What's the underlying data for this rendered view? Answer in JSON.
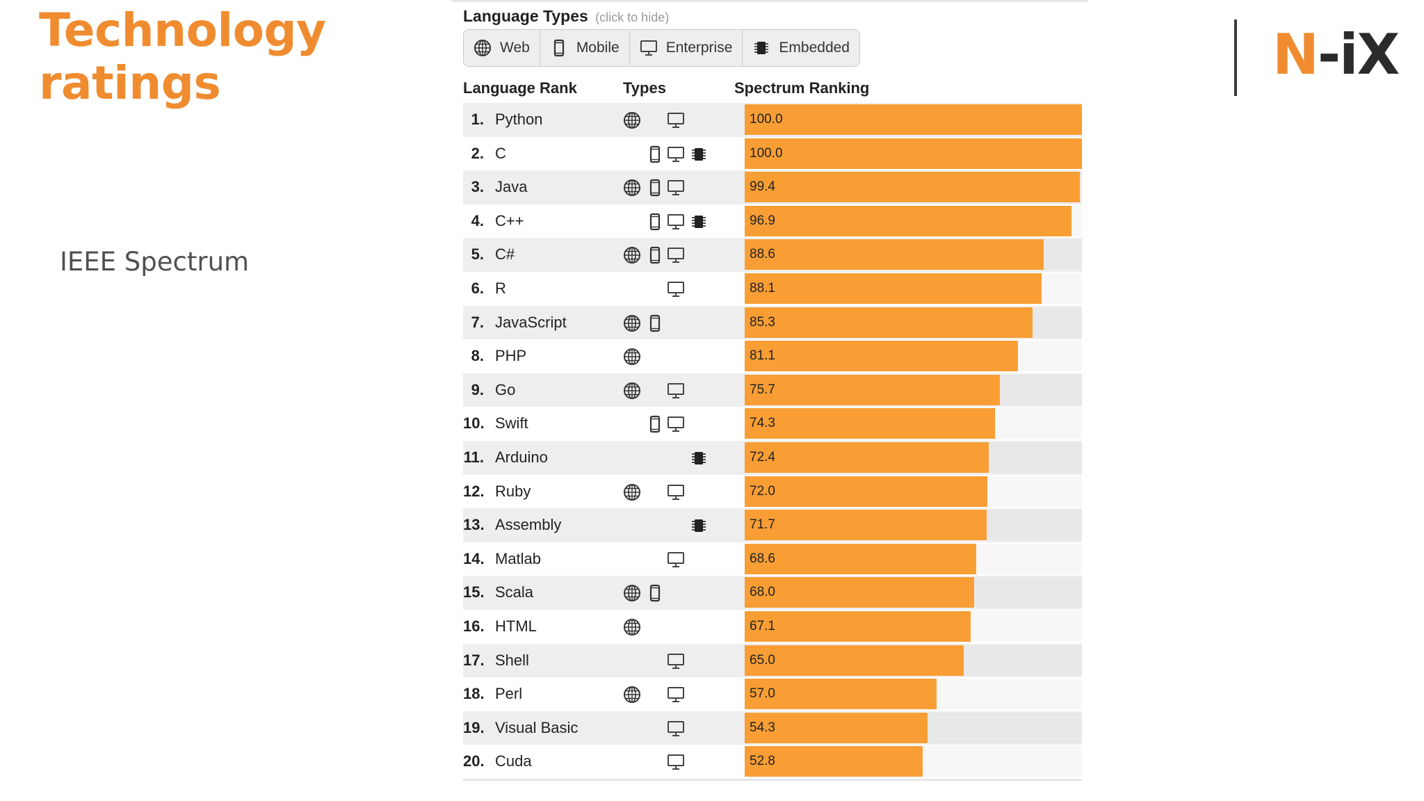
{
  "slide": {
    "title_line1": "Technology",
    "title_line2": "ratings",
    "subtitle": "IEEE Spectrum",
    "logo_n": "N",
    "logo_rest": "-iX"
  },
  "widget": {
    "language_types_label": "Language Types",
    "language_types_hint": "(click to hide)",
    "filters": [
      {
        "label": "Web",
        "icon": "globe-icon"
      },
      {
        "label": "Mobile",
        "icon": "mobile-icon"
      },
      {
        "label": "Enterprise",
        "icon": "monitor-icon"
      },
      {
        "label": "Embedded",
        "icon": "chip-icon"
      }
    ],
    "col_rank": "Language Rank",
    "col_types": "Types",
    "col_spectrum": "Spectrum Ranking"
  },
  "colors": {
    "bar": "#f89e35",
    "title": "#f08c30"
  },
  "chart_data": {
    "type": "bar",
    "orientation": "horizontal",
    "xlim": [
      0,
      100
    ],
    "categories": [
      "Python",
      "C",
      "Java",
      "C++",
      "C#",
      "R",
      "JavaScript",
      "PHP",
      "Go",
      "Swift",
      "Arduino",
      "Ruby",
      "Assembly",
      "Matlab",
      "Scala",
      "HTML",
      "Shell",
      "Perl",
      "Visual Basic",
      "Cuda"
    ],
    "values": [
      100.0,
      100.0,
      99.4,
      96.9,
      88.6,
      88.1,
      85.3,
      81.1,
      75.7,
      74.3,
      72.4,
      72.0,
      71.7,
      68.6,
      68.0,
      67.1,
      65.0,
      57.0,
      54.3,
      52.8
    ],
    "labels": [
      "100.0",
      "100.0",
      "99.4",
      "96.9",
      "88.6",
      "88.1",
      "85.3",
      "81.1",
      "75.7",
      "74.3",
      "72.4",
      "72.0",
      "71.7",
      "68.6",
      "68.0",
      "67.1",
      "65.0",
      "57.0",
      "54.3",
      "52.8"
    ],
    "ranks": [
      "1.",
      "2.",
      "3.",
      "4.",
      "5.",
      "6.",
      "7.",
      "8.",
      "9.",
      "10.",
      "11.",
      "12.",
      "13.",
      "14.",
      "15.",
      "16.",
      "17.",
      "18.",
      "19.",
      "20."
    ],
    "types": [
      [
        "web",
        "enterprise"
      ],
      [
        "mobile",
        "enterprise",
        "embedded"
      ],
      [
        "web",
        "mobile",
        "enterprise"
      ],
      [
        "mobile",
        "enterprise",
        "embedded"
      ],
      [
        "web",
        "mobile",
        "enterprise"
      ],
      [
        "enterprise"
      ],
      [
        "web",
        "mobile"
      ],
      [
        "web"
      ],
      [
        "web",
        "enterprise"
      ],
      [
        "mobile",
        "enterprise"
      ],
      [
        "embedded"
      ],
      [
        "web",
        "enterprise"
      ],
      [
        "embedded"
      ],
      [
        "enterprise"
      ],
      [
        "web",
        "mobile"
      ],
      [
        "web"
      ],
      [
        "enterprise"
      ],
      [
        "web",
        "enterprise"
      ],
      [
        "enterprise"
      ],
      [
        "enterprise"
      ]
    ]
  }
}
